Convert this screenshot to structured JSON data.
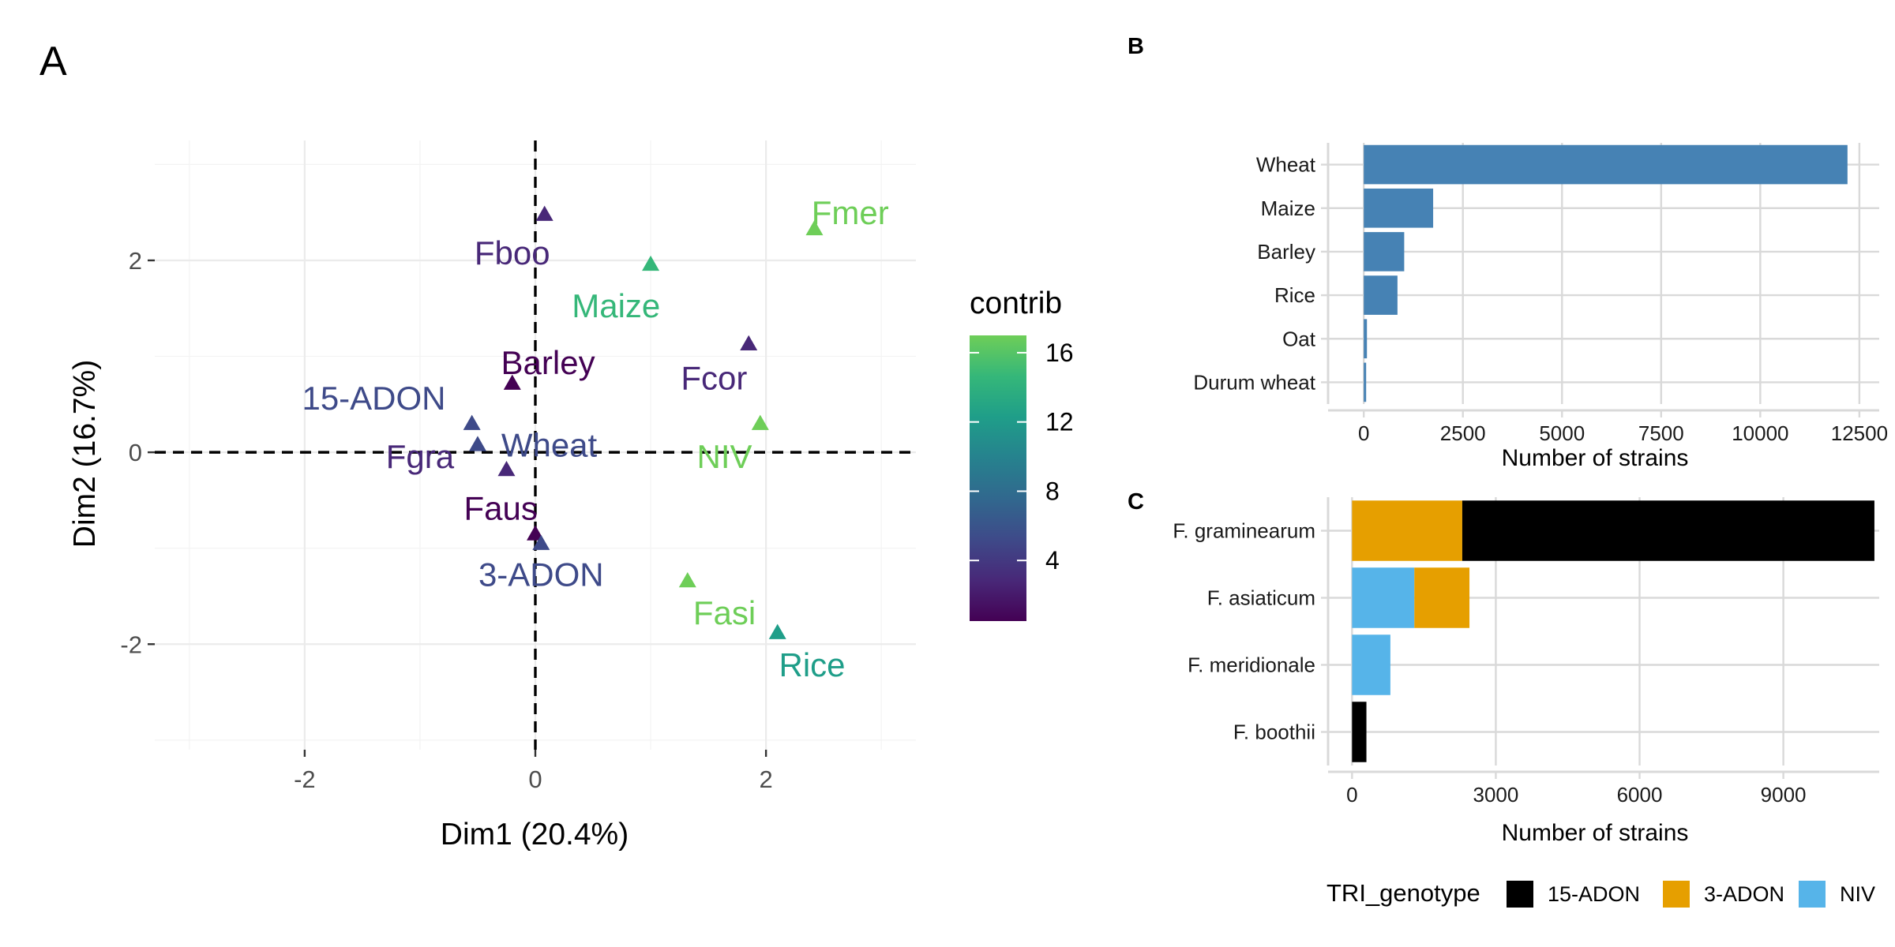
{
  "chart_data": [
    {
      "panel": "A",
      "type": "scatter",
      "xlabel": "Dim1 (20.4%)",
      "ylabel": "Dim2 (16.7%)",
      "xlim": [
        -3.3,
        3.3
      ],
      "ylim": [
        -3.1,
        3.25
      ],
      "x_ticks": [
        -2,
        0,
        2
      ],
      "y_ticks": [
        -2,
        0,
        2
      ],
      "x_minor": [
        -3,
        -1,
        1,
        3
      ],
      "y_minor": [
        -3,
        -1,
        1,
        3
      ],
      "reference_lines": {
        "x": 0,
        "y": 0,
        "style": "dashed"
      },
      "grid": true,
      "marker": "triangle",
      "color_legend": {
        "title": "contrib",
        "range": [
          0.5,
          17
        ],
        "ticks": [
          4,
          8,
          12,
          16
        ],
        "colors": [
          "#440154",
          "#482878",
          "#3e4a89",
          "#31688e",
          "#26828e",
          "#1f9e89",
          "#35b779",
          "#6ece58"
        ]
      },
      "points": [
        {
          "label": "Fmer",
          "x": 2.42,
          "y": 2.33,
          "contrib": 17.0,
          "color": "#6ece58",
          "lx": 2.73,
          "ly": 2.5
        },
        {
          "label": "Fboo",
          "x": 0.08,
          "y": 2.48,
          "contrib": 3.5,
          "color": "#482878",
          "lx": -0.2,
          "ly": 2.08
        },
        {
          "label": "Maize",
          "x": 1.0,
          "y": 1.96,
          "contrib": 14.0,
          "color": "#35b779",
          "lx": 0.7,
          "ly": 1.53
        },
        {
          "label": "Barley",
          "x": -0.2,
          "y": 0.72,
          "contrib": 1.5,
          "color": "#440154",
          "lx": 0.11,
          "ly": 0.94
        },
        {
          "label": "Fcor",
          "x": 1.85,
          "y": 1.13,
          "contrib": 2.5,
          "color": "#482878",
          "lx": 1.55,
          "ly": 0.78
        },
        {
          "label": "15-ADON",
          "x": -0.55,
          "y": 0.3,
          "contrib": 6.5,
          "color": "#3e4a89",
          "lx": -1.4,
          "ly": 0.57
        },
        {
          "label": "Wheat",
          "x": -0.5,
          "y": 0.08,
          "contrib": 5.5,
          "color": "#3e4a89",
          "lx": 0.12,
          "ly": 0.08
        },
        {
          "label": "Fgra",
          "x": -0.25,
          "y": -0.18,
          "contrib": 3.0,
          "color": "#482878",
          "lx": -1.0,
          "ly": -0.04
        },
        {
          "label": "NIV",
          "x": 1.95,
          "y": 0.3,
          "contrib": 16.5,
          "color": "#6ece58",
          "lx": 1.64,
          "ly": -0.04
        },
        {
          "label": "Faus",
          "x": 0.0,
          "y": -0.85,
          "contrib": 1.0,
          "color": "#440154",
          "lx": -0.3,
          "ly": -0.58
        },
        {
          "label": "3-ADON",
          "x": 0.05,
          "y": -0.95,
          "contrib": 6.0,
          "color": "#3e4a89",
          "lx": 0.05,
          "ly": -1.27
        },
        {
          "label": "Fasi",
          "x": 1.32,
          "y": -1.34,
          "contrib": 16.0,
          "color": "#6ece58",
          "lx": 1.64,
          "ly": -1.67
        },
        {
          "label": "Rice",
          "x": 2.1,
          "y": -1.88,
          "contrib": 12.0,
          "color": "#1f9e89",
          "lx": 2.4,
          "ly": -2.21
        }
      ]
    },
    {
      "panel": "B",
      "type": "bar",
      "orientation": "horizontal",
      "categories": [
        "Wheat",
        "Maize",
        "Barley",
        "Rice",
        "Oat",
        "Durum wheat"
      ],
      "values": [
        12200,
        1750,
        1020,
        850,
        80,
        60
      ],
      "color": "#4682b4",
      "xlabel": "Number of strains",
      "ylabel": "",
      "xlim": [
        -900,
        13000
      ],
      "x_ticks": [
        0,
        2500,
        5000,
        7500,
        10000,
        12500
      ],
      "x_tick_labels": [
        "0",
        "2500",
        "5000",
        "7500",
        "10000",
        "12500"
      ],
      "grid": true
    },
    {
      "panel": "C",
      "type": "bar",
      "orientation": "horizontal",
      "stacked": true,
      "categories": [
        "F. graminearum",
        "F. asiaticum",
        "F. meridionale",
        "F. boothii"
      ],
      "series": [
        {
          "name": "NIV",
          "values": [
            0,
            1300,
            800,
            0
          ],
          "color": "#56b4e9"
        },
        {
          "name": "3-ADON",
          "values": [
            2300,
            1150,
            0,
            0
          ],
          "color": "#e69f00"
        },
        {
          "name": "15-ADON",
          "values": [
            8600,
            0,
            0,
            300
          ],
          "color": "#000000"
        }
      ],
      "xlabel": "Number of strains",
      "ylabel": "",
      "xlim": [
        -500,
        11000
      ],
      "x_ticks": [
        0,
        3000,
        6000,
        9000
      ],
      "x_tick_labels": [
        "0",
        "3000",
        "6000",
        "9000"
      ],
      "legend": {
        "title": "TRI_genotype",
        "position": "bottom",
        "entries": [
          {
            "name": "15-ADON",
            "color": "#000000"
          },
          {
            "name": "3-ADON",
            "color": "#e69f00"
          },
          {
            "name": "NIV",
            "color": "#56b4e9"
          }
        ]
      },
      "grid": true
    }
  ]
}
